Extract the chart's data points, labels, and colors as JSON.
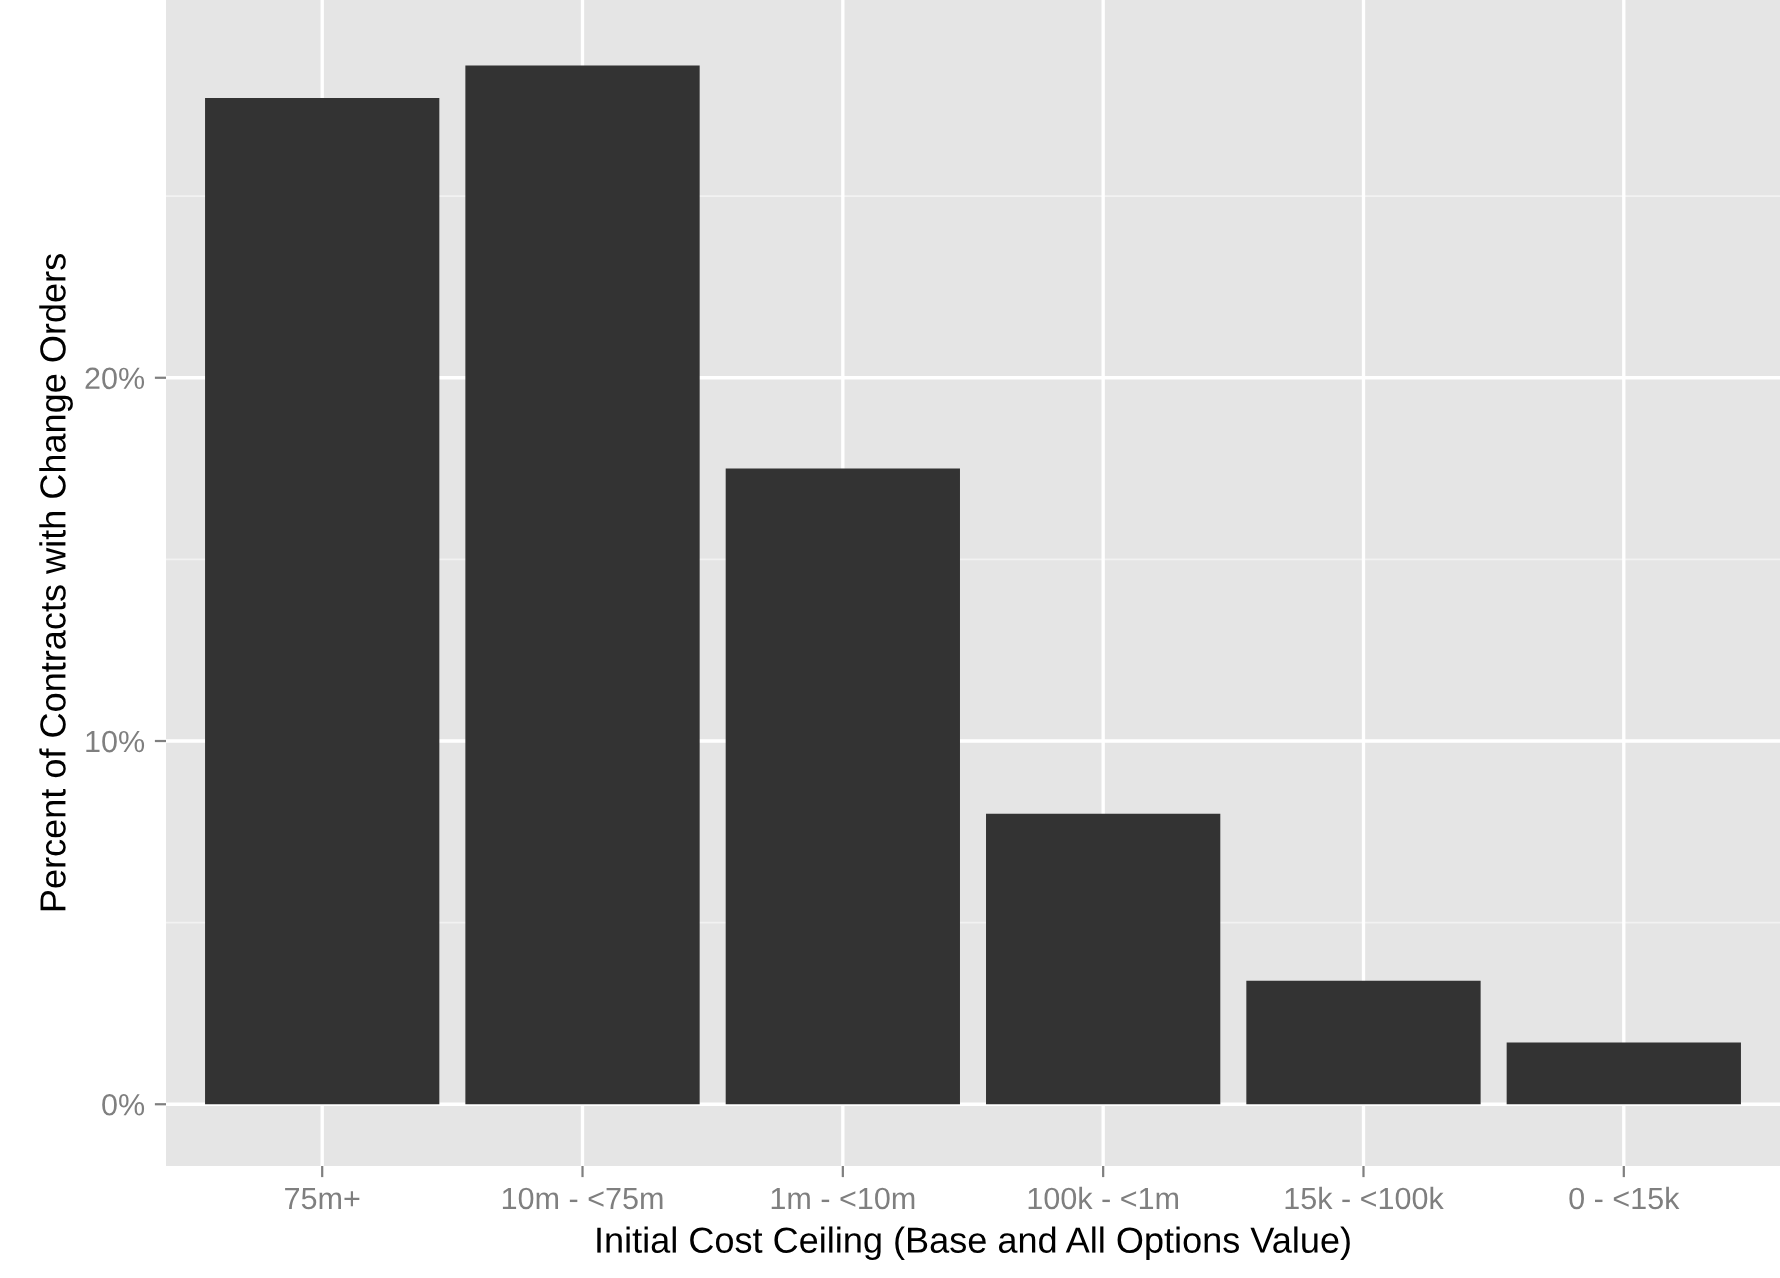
{
  "chart_data": {
    "type": "bar",
    "xlabel": "Initial Cost Ceiling (Base and All Options Value)",
    "ylabel": "Percent of Contracts with Change Orders",
    "categories": [
      "75m+",
      "10m - <75m",
      "1m - <10m",
      "100k - <1m",
      "15k - <100k",
      "0 - <15k"
    ],
    "values": [
      27.7,
      28.6,
      17.5,
      8.0,
      3.4,
      1.7
    ],
    "color": "#333333",
    "ylim": [
      -1.7,
      30.4
    ],
    "yticks": [
      {
        "value": 0,
        "label": "0%"
      },
      {
        "value": 10,
        "label": "10%"
      },
      {
        "value": 20,
        "label": "20%"
      }
    ],
    "grid": true
  }
}
